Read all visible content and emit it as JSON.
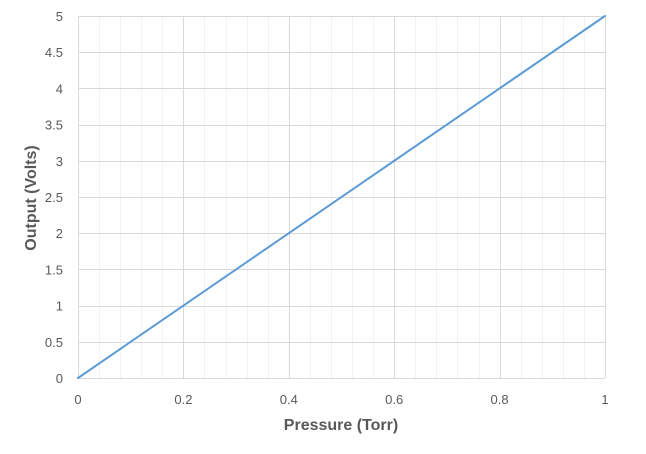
{
  "chart_data": {
    "type": "line",
    "title": "",
    "xlabel": "Pressure (Torr)",
    "ylabel": "Output (Volts)",
    "xlim": [
      0,
      1
    ],
    "ylim": [
      0,
      5
    ],
    "x_ticks": [
      0,
      0.2,
      0.4,
      0.6,
      0.8,
      1
    ],
    "x_tick_labels": [
      "0",
      "0.2",
      "0.4",
      "0.6",
      "0.8",
      "1"
    ],
    "y_ticks": [
      0,
      0.5,
      1,
      1.5,
      2,
      2.5,
      3,
      3.5,
      4,
      4.5,
      5
    ],
    "y_tick_labels": [
      "0",
      "0.5",
      "1",
      "1.5",
      "2",
      "2.5",
      "3",
      "3.5",
      "4",
      "4.5",
      "5"
    ],
    "x_minor_step": 0.04,
    "grid": true,
    "legend": "none",
    "series": [
      {
        "x": [
          0,
          1
        ],
        "y": [
          0,
          5
        ],
        "color": "#5b9bd5"
      }
    ],
    "colors": {
      "major_grid": "#d9d9d9",
      "minor_grid": "#f2f2f2",
      "text": "#595959"
    }
  }
}
